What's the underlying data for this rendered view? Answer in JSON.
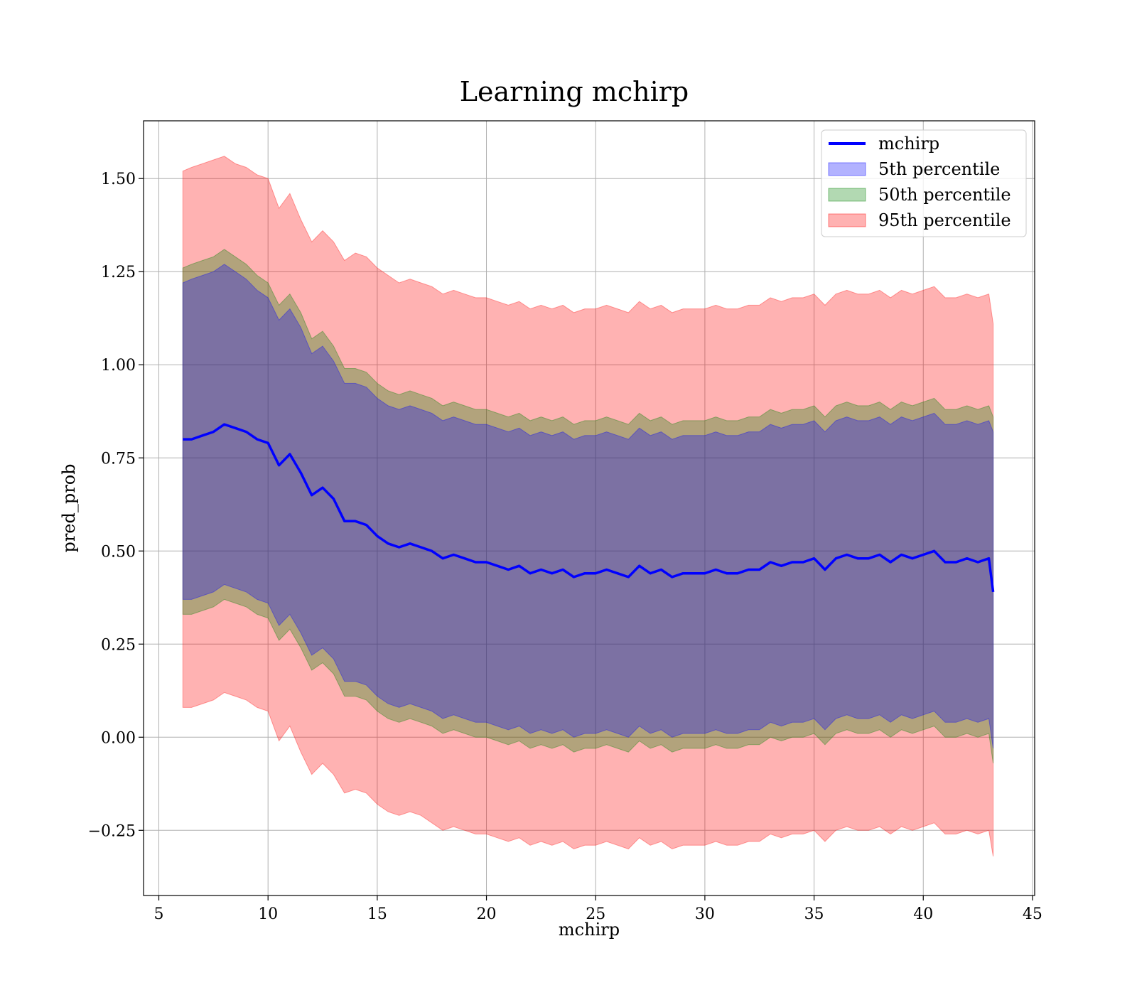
{
  "chart_data": {
    "type": "line",
    "title": "Learning mchirp",
    "xlabel": "mchirp",
    "ylabel": "pred_prob",
    "xlim": [
      4.3,
      45.1
    ],
    "ylim": [
      -0.425,
      1.655
    ],
    "xticks": [
      5,
      10,
      15,
      20,
      25,
      30,
      35,
      40,
      45
    ],
    "xtick_labels": [
      "5",
      "10",
      "15",
      "20",
      "25",
      "30",
      "35",
      "40",
      "45"
    ],
    "yticks": [
      -0.25,
      0.0,
      0.25,
      0.5,
      0.75,
      1.0,
      1.25,
      1.5
    ],
    "ytick_labels": [
      "−0.25",
      "0.00",
      "0.25",
      "0.50",
      "0.75",
      "1.00",
      "1.25",
      "1.50"
    ],
    "grid": true,
    "legend_position": "top-right",
    "colors": {
      "line": "#0000ff",
      "band_5th": "#0000ff",
      "band_50th": "#008000",
      "band_95th": "#ff0000"
    },
    "x": [
      6.1,
      6.5,
      7.0,
      7.5,
      8.0,
      8.5,
      9.0,
      9.5,
      10.0,
      10.5,
      11.0,
      11.5,
      12.0,
      12.5,
      13.0,
      13.5,
      14.0,
      14.5,
      15.0,
      15.5,
      16.0,
      16.5,
      17.0,
      17.5,
      18.0,
      18.5,
      19.0,
      19.5,
      20.0,
      20.5,
      21.0,
      21.5,
      22.0,
      22.5,
      23.0,
      23.5,
      24.0,
      24.5,
      25.0,
      25.5,
      26.0,
      26.5,
      27.0,
      27.5,
      28.0,
      28.5,
      29.0,
      29.5,
      30.0,
      30.5,
      31.0,
      31.5,
      32.0,
      32.5,
      33.0,
      33.5,
      34.0,
      34.5,
      35.0,
      35.5,
      36.0,
      36.5,
      37.0,
      37.5,
      38.0,
      38.5,
      39.0,
      39.5,
      40.0,
      40.5,
      41.0,
      41.5,
      42.0,
      42.5,
      43.0,
      43.2
    ],
    "series": [
      {
        "name": "mchirp",
        "kind": "line",
        "values": [
          0.8,
          0.8,
          0.81,
          0.82,
          0.84,
          0.83,
          0.82,
          0.8,
          0.79,
          0.73,
          0.76,
          0.71,
          0.65,
          0.67,
          0.64,
          0.58,
          0.58,
          0.57,
          0.54,
          0.52,
          0.51,
          0.52,
          0.51,
          0.5,
          0.48,
          0.49,
          0.48,
          0.47,
          0.47,
          0.46,
          0.45,
          0.46,
          0.44,
          0.45,
          0.44,
          0.45,
          0.43,
          0.44,
          0.44,
          0.45,
          0.44,
          0.43,
          0.46,
          0.44,
          0.45,
          0.43,
          0.44,
          0.44,
          0.44,
          0.45,
          0.44,
          0.44,
          0.45,
          0.45,
          0.47,
          0.46,
          0.47,
          0.47,
          0.48,
          0.45,
          0.48,
          0.49,
          0.48,
          0.48,
          0.49,
          0.47,
          0.49,
          0.48,
          0.49,
          0.5,
          0.47,
          0.47,
          0.48,
          0.47,
          0.48,
          0.39
        ]
      },
      {
        "name": "5th percentile",
        "kind": "band",
        "upper": [
          1.22,
          1.23,
          1.24,
          1.25,
          1.27,
          1.25,
          1.23,
          1.2,
          1.18,
          1.12,
          1.15,
          1.1,
          1.03,
          1.05,
          1.01,
          0.95,
          0.95,
          0.94,
          0.91,
          0.89,
          0.88,
          0.89,
          0.88,
          0.87,
          0.85,
          0.86,
          0.85,
          0.84,
          0.84,
          0.83,
          0.82,
          0.83,
          0.81,
          0.82,
          0.81,
          0.82,
          0.8,
          0.81,
          0.81,
          0.82,
          0.81,
          0.8,
          0.83,
          0.81,
          0.82,
          0.8,
          0.81,
          0.81,
          0.81,
          0.82,
          0.81,
          0.81,
          0.82,
          0.82,
          0.84,
          0.83,
          0.84,
          0.84,
          0.85,
          0.82,
          0.85,
          0.86,
          0.85,
          0.85,
          0.86,
          0.84,
          0.86,
          0.85,
          0.86,
          0.87,
          0.84,
          0.84,
          0.85,
          0.84,
          0.85,
          0.82
        ],
        "lower": [
          0.37,
          0.37,
          0.38,
          0.39,
          0.41,
          0.4,
          0.39,
          0.37,
          0.36,
          0.3,
          0.33,
          0.28,
          0.22,
          0.24,
          0.21,
          0.15,
          0.15,
          0.14,
          0.11,
          0.09,
          0.08,
          0.09,
          0.08,
          0.07,
          0.05,
          0.06,
          0.05,
          0.04,
          0.04,
          0.03,
          0.02,
          0.03,
          0.01,
          0.02,
          0.01,
          0.02,
          0.0,
          0.01,
          0.01,
          0.02,
          0.01,
          0.0,
          0.03,
          0.01,
          0.02,
          0.0,
          0.01,
          0.01,
          0.01,
          0.02,
          0.01,
          0.01,
          0.02,
          0.02,
          0.04,
          0.03,
          0.04,
          0.04,
          0.05,
          0.02,
          0.05,
          0.06,
          0.05,
          0.05,
          0.06,
          0.04,
          0.06,
          0.05,
          0.06,
          0.07,
          0.04,
          0.04,
          0.05,
          0.04,
          0.05,
          -0.03
        ]
      },
      {
        "name": "50th percentile",
        "kind": "band",
        "upper": [
          1.26,
          1.27,
          1.28,
          1.29,
          1.31,
          1.29,
          1.27,
          1.24,
          1.22,
          1.16,
          1.19,
          1.14,
          1.07,
          1.09,
          1.05,
          0.99,
          0.99,
          0.98,
          0.95,
          0.93,
          0.92,
          0.93,
          0.92,
          0.91,
          0.89,
          0.9,
          0.89,
          0.88,
          0.88,
          0.87,
          0.86,
          0.87,
          0.85,
          0.86,
          0.85,
          0.86,
          0.84,
          0.85,
          0.85,
          0.86,
          0.85,
          0.84,
          0.87,
          0.85,
          0.86,
          0.84,
          0.85,
          0.85,
          0.85,
          0.86,
          0.85,
          0.85,
          0.86,
          0.86,
          0.88,
          0.87,
          0.88,
          0.88,
          0.89,
          0.86,
          0.89,
          0.9,
          0.89,
          0.89,
          0.9,
          0.88,
          0.9,
          0.89,
          0.9,
          0.91,
          0.88,
          0.88,
          0.89,
          0.88,
          0.89,
          0.86
        ],
        "lower": [
          0.33,
          0.33,
          0.34,
          0.35,
          0.37,
          0.36,
          0.35,
          0.33,
          0.32,
          0.26,
          0.29,
          0.24,
          0.18,
          0.2,
          0.17,
          0.11,
          0.11,
          0.1,
          0.07,
          0.05,
          0.04,
          0.05,
          0.04,
          0.03,
          0.01,
          0.02,
          0.01,
          0.0,
          0.0,
          -0.01,
          -0.02,
          -0.01,
          -0.03,
          -0.02,
          -0.03,
          -0.02,
          -0.04,
          -0.03,
          -0.03,
          -0.02,
          -0.03,
          -0.04,
          -0.01,
          -0.03,
          -0.02,
          -0.04,
          -0.03,
          -0.03,
          -0.03,
          -0.02,
          -0.03,
          -0.03,
          -0.02,
          -0.02,
          0.0,
          -0.01,
          0.0,
          0.0,
          0.01,
          -0.02,
          0.01,
          0.02,
          0.01,
          0.01,
          0.02,
          0.0,
          0.02,
          0.01,
          0.02,
          0.03,
          0.0,
          0.0,
          0.01,
          0.0,
          0.01,
          -0.07
        ]
      },
      {
        "name": "95th percentile",
        "kind": "band",
        "upper": [
          1.52,
          1.53,
          1.54,
          1.55,
          1.56,
          1.54,
          1.53,
          1.51,
          1.5,
          1.42,
          1.46,
          1.39,
          1.33,
          1.36,
          1.33,
          1.28,
          1.3,
          1.29,
          1.26,
          1.24,
          1.22,
          1.23,
          1.22,
          1.21,
          1.19,
          1.2,
          1.19,
          1.18,
          1.18,
          1.17,
          1.16,
          1.17,
          1.15,
          1.16,
          1.15,
          1.16,
          1.14,
          1.15,
          1.15,
          1.16,
          1.15,
          1.14,
          1.17,
          1.15,
          1.16,
          1.14,
          1.15,
          1.15,
          1.15,
          1.16,
          1.15,
          1.15,
          1.16,
          1.16,
          1.18,
          1.17,
          1.18,
          1.18,
          1.19,
          1.16,
          1.19,
          1.2,
          1.19,
          1.19,
          1.2,
          1.18,
          1.2,
          1.19,
          1.2,
          1.21,
          1.18,
          1.18,
          1.19,
          1.18,
          1.19,
          1.11
        ],
        "lower": [
          0.08,
          0.08,
          0.09,
          0.1,
          0.12,
          0.11,
          0.1,
          0.08,
          0.07,
          -0.01,
          0.03,
          -0.04,
          -0.1,
          -0.07,
          -0.1,
          -0.15,
          -0.14,
          -0.15,
          -0.18,
          -0.2,
          -0.21,
          -0.2,
          -0.21,
          -0.23,
          -0.25,
          -0.24,
          -0.25,
          -0.26,
          -0.26,
          -0.27,
          -0.28,
          -0.27,
          -0.29,
          -0.28,
          -0.29,
          -0.28,
          -0.3,
          -0.29,
          -0.29,
          -0.28,
          -0.29,
          -0.3,
          -0.27,
          -0.29,
          -0.28,
          -0.3,
          -0.29,
          -0.29,
          -0.29,
          -0.28,
          -0.29,
          -0.29,
          -0.28,
          -0.28,
          -0.26,
          -0.27,
          -0.26,
          -0.26,
          -0.25,
          -0.28,
          -0.25,
          -0.24,
          -0.25,
          -0.25,
          -0.24,
          -0.26,
          -0.24,
          -0.25,
          -0.24,
          -0.23,
          -0.26,
          -0.26,
          -0.25,
          -0.26,
          -0.25,
          -0.32
        ]
      }
    ]
  }
}
